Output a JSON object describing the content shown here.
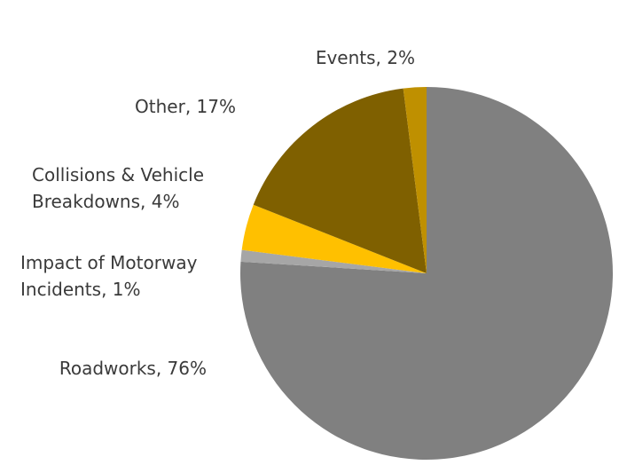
{
  "chart_data": {
    "type": "pie",
    "title": "",
    "slices": [
      {
        "label": "Roadworks",
        "value": 76,
        "display": "Roadworks, 76%",
        "color": "#808080"
      },
      {
        "label": "Impact of Motorway Incidents",
        "value": 1,
        "display": [
          "Impact of Motorway",
          "Incidents, 1%"
        ],
        "color": "#a6a6a6"
      },
      {
        "label": "Collisions & Vehicle Breakdowns",
        "value": 4,
        "display": [
          "Collisions & Vehicle",
          "Breakdowns, 4%"
        ],
        "color": "#ffc000"
      },
      {
        "label": "Other",
        "value": 17,
        "display": "Other, 17%",
        "color": "#7f6000"
      },
      {
        "label": "Events",
        "value": 2,
        "display": "Events, 2%",
        "color": "#bf9000"
      }
    ],
    "start": "12 o'clock",
    "direction": "clockwise"
  }
}
